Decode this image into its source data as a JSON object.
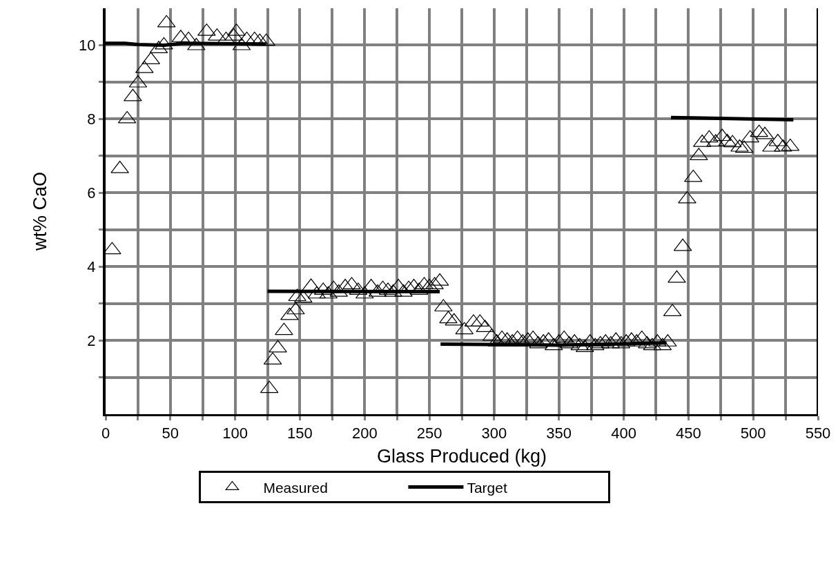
{
  "chart_data": {
    "type": "scatter",
    "xlabel": "Glass Produced (kg)",
    "ylabel": "wt% CaO",
    "xlim": [
      0,
      550
    ],
    "ylim": [
      0,
      11
    ],
    "xticks": [
      0,
      {
        "value": 25,
        "label": null
      },
      50,
      {
        "value": 75,
        "label": null
      },
      100,
      {
        "value": 125,
        "label": null
      },
      150,
      {
        "value": 175,
        "label": null
      },
      200,
      {
        "value": 225,
        "label": null
      },
      250,
      {
        "value": 275,
        "label": null
      },
      300,
      {
        "value": 325,
        "label": null
      },
      350,
      {
        "value": 375,
        "label": null
      },
      400,
      {
        "value": 425,
        "label": null
      },
      450,
      {
        "value": 475,
        "label": null
      },
      500,
      {
        "value": 525,
        "label": null
      },
      550
    ],
    "yticks": [
      {
        "value": 1,
        "label": null
      },
      2,
      {
        "value": 3,
        "label": null
      },
      4,
      {
        "value": 5,
        "label": null
      },
      6,
      {
        "value": 7,
        "label": null
      },
      8,
      {
        "value": 9,
        "label": null
      },
      10
    ],
    "grid": true,
    "legend": "bottom",
    "series": [
      {
        "name": "Measured",
        "marker": "triangle",
        "color": "#000000",
        "x": [
          5,
          11,
          16.6,
          21,
          25,
          30,
          35,
          41,
          45,
          47,
          58,
          64,
          70,
          78,
          86,
          93,
          99,
          101,
          105,
          109,
          115,
          119,
          124,
          126.4,
          129,
          133,
          137.7,
          142,
          146.8,
          148,
          152.6,
          158.6,
          163,
          168,
          172,
          176,
          180,
          185,
          190,
          195,
          200,
          205,
          210,
          214,
          218,
          222,
          226,
          230,
          234,
          238,
          242,
          246,
          250,
          254,
          258,
          260.8,
          264.6,
          269,
          277,
          284,
          289,
          293,
          298,
          302,
          306,
          310,
          314,
          318,
          322,
          326,
          330,
          334,
          338,
          342,
          346,
          350,
          354,
          358,
          362,
          366,
          370,
          374,
          378,
          382,
          386,
          390,
          394,
          398,
          402,
          406,
          410,
          414,
          418,
          422,
          426,
          430,
          434,
          437.6,
          441,
          445.6,
          449,
          453.7,
          458,
          460.6,
          466,
          471,
          476,
          480,
          484,
          489.5,
          493,
          497.6,
          504.5,
          509,
          514,
          519,
          523,
          528.6
        ],
        "values": [
          4.45,
          6.65,
          8.0,
          8.6,
          8.97,
          9.36,
          9.6,
          9.9,
          10.0,
          10.6,
          10.2,
          10.15,
          9.98,
          10.37,
          10.24,
          10.15,
          10.24,
          10.37,
          9.98,
          10.15,
          10.15,
          10.1,
          10.1,
          0.69,
          1.46,
          1.79,
          2.26,
          2.67,
          2.82,
          3.18,
          3.14,
          3.46,
          3.25,
          3.35,
          3.25,
          3.4,
          3.3,
          3.45,
          3.5,
          3.35,
          3.25,
          3.45,
          3.3,
          3.4,
          3.35,
          3.3,
          3.45,
          3.3,
          3.4,
          3.45,
          3.35,
          3.5,
          3.45,
          3.5,
          3.6,
          2.9,
          2.58,
          2.52,
          2.28,
          2.49,
          2.49,
          2.34,
          2.1,
          1.95,
          2.05,
          2.0,
          1.95,
          2.05,
          1.95,
          2.0,
          2.05,
          1.9,
          1.95,
          2.0,
          1.85,
          1.95,
          2.05,
          1.9,
          1.95,
          1.85,
          1.8,
          1.95,
          1.85,
          1.9,
          1.95,
          1.9,
          2.0,
          1.9,
          1.95,
          2.0,
          1.95,
          2.05,
          1.9,
          1.85,
          1.95,
          1.85,
          1.95,
          2.77,
          3.68,
          4.54,
          5.83,
          6.41,
          7.0,
          7.36,
          7.48,
          7.37,
          7.52,
          7.38,
          7.35,
          7.23,
          7.2,
          7.48,
          7.63,
          7.57,
          7.23,
          7.38,
          7.23,
          7.25
        ]
      },
      {
        "name": "Target",
        "type": "line",
        "marker": "none",
        "line_style": "solid",
        "color": "#000000",
        "x": [
          0,
          15,
          25,
          45,
          60,
          124,
          124.5,
          125,
          258,
          258.5,
          258.6,
          350,
          433,
          435,
          436.5,
          531
        ],
        "values": [
          10.05,
          10.05,
          10.02,
          10.0,
          10.05,
          10.03,
          null,
          3.33,
          3.32,
          null,
          1.9,
          1.87,
          1.93,
          null,
          8.04,
          7.98
        ]
      }
    ]
  }
}
